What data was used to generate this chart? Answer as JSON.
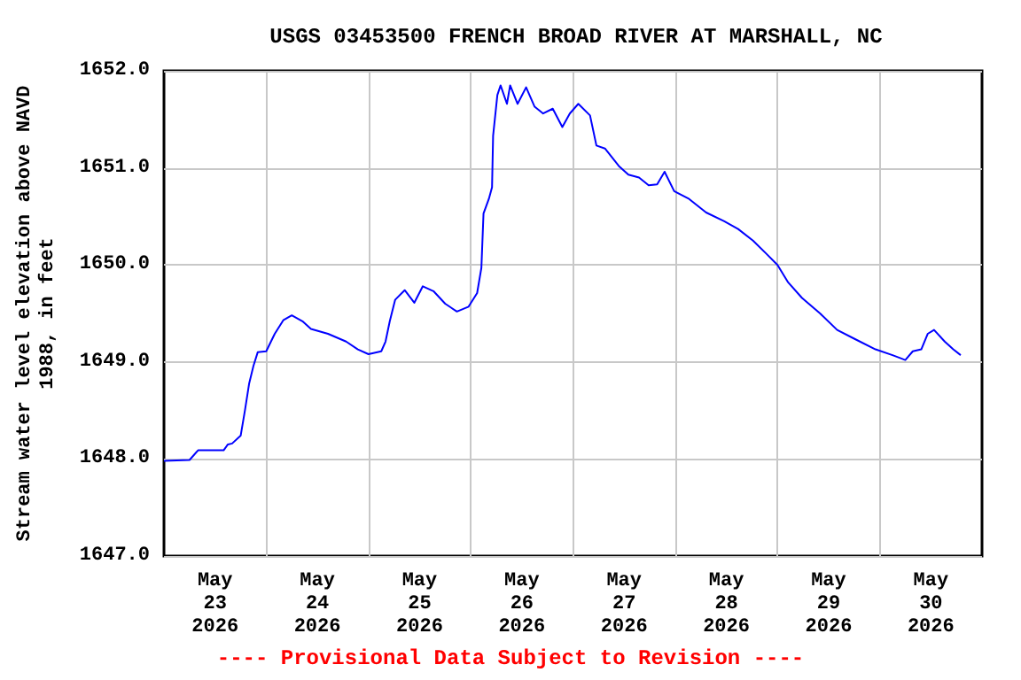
{
  "chart_data": {
    "type": "line",
    "title": "USGS 03453500 FRENCH BROAD RIVER AT MARSHALL, NC",
    "ylabel": "Stream water level elevation above NAVD\n1988, in feet",
    "annotations": [
      "---- Provisional Data Subject to Revision ----"
    ],
    "x": [
      "2026-05-22T12:00",
      "2026-05-22T18:00",
      "2026-05-22T20:00",
      "2026-05-23T02:00",
      "2026-05-23T03:00",
      "2026-05-23T04:00",
      "2026-05-23T06:00",
      "2026-05-23T07:00",
      "2026-05-23T08:00",
      "2026-05-23T09:00",
      "2026-05-23T10:00",
      "2026-05-23T12:00",
      "2026-05-23T14:00",
      "2026-05-23T16:00",
      "2026-05-23T18:00",
      "2026-05-23T20:30",
      "2026-05-23T22:30",
      "2026-05-24T02:30",
      "2026-05-24T06:45",
      "2026-05-24T09:30",
      "2026-05-24T12:00",
      "2026-05-24T15:00",
      "2026-05-24T16:00",
      "2026-05-24T17:00",
      "2026-05-24T18:15",
      "2026-05-24T20:30",
      "2026-05-24T22:45",
      "2026-05-25T00:45",
      "2026-05-25T03:15",
      "2026-05-25T06:00",
      "2026-05-25T08:45",
      "2026-05-25T11:30",
      "2026-05-25T13:30",
      "2026-05-25T14:30",
      "2026-05-25T15:00",
      "2026-05-25T16:15",
      "2026-05-25T17:00",
      "2026-05-25T17:15",
      "2026-05-25T18:15",
      "2026-05-25T19:00",
      "2026-05-25T20:30",
      "2026-05-25T21:15",
      "2026-05-25T23:00",
      "2026-05-26T01:00",
      "2026-05-26T03:00",
      "2026-05-26T05:00",
      "2026-05-26T07:15",
      "2026-05-26T09:30",
      "2026-05-26T11:15",
      "2026-05-26T13:15",
      "2026-05-26T16:00",
      "2026-05-26T17:30",
      "2026-05-26T19:30",
      "2026-05-26T22:45",
      "2026-05-27T01:00",
      "2026-05-27T03:30",
      "2026-05-27T05:45",
      "2026-05-27T07:45",
      "2026-05-27T09:30",
      "2026-05-27T11:45",
      "2026-05-27T15:15",
      "2026-05-27T19:15",
      "2026-05-27T23:30",
      "2026-05-28T02:45",
      "2026-05-28T06:15",
      "2026-05-28T09:30",
      "2026-05-28T12:00",
      "2026-05-28T14:30",
      "2026-05-28T17:45",
      "2026-05-28T22:00",
      "2026-05-29T02:00",
      "2026-05-29T06:00",
      "2026-05-29T11:00",
      "2026-05-29T15:00",
      "2026-05-29T18:00",
      "2026-05-29T19:45",
      "2026-05-29T21:45",
      "2026-05-29T23:15",
      "2026-05-30T00:45",
      "2026-05-30T03:15",
      "2026-05-30T05:15",
      "2026-05-30T07:00"
    ],
    "series": [
      {
        "color": "#0000ff",
        "values": [
          1647.98,
          1647.99,
          1648.09,
          1648.09,
          1648.15,
          1648.16,
          1648.24,
          1648.5,
          1648.78,
          1648.96,
          1649.1,
          1649.11,
          1649.29,
          1649.43,
          1649.48,
          1649.42,
          1649.34,
          1649.29,
          1649.21,
          1649.13,
          1649.08,
          1649.11,
          1649.21,
          1649.42,
          1649.64,
          1649.74,
          1649.61,
          1649.78,
          1649.73,
          1649.6,
          1649.52,
          1649.57,
          1649.71,
          1649.97,
          1650.53,
          1650.68,
          1650.8,
          1651.33,
          1651.75,
          1651.85,
          1651.66,
          1651.85,
          1651.66,
          1651.83,
          1651.63,
          1651.56,
          1651.61,
          1651.42,
          1651.56,
          1651.66,
          1651.54,
          1651.23,
          1651.2,
          1651.02,
          1650.93,
          1650.9,
          1650.82,
          1650.83,
          1650.96,
          1650.76,
          1650.68,
          1650.54,
          1650.45,
          1650.37,
          1650.25,
          1650.11,
          1650.0,
          1649.82,
          1649.66,
          1649.5,
          1649.33,
          1649.24,
          1649.13,
          1649.07,
          1649.02,
          1649.11,
          1649.13,
          1649.29,
          1649.33,
          1649.21,
          1649.13,
          1649.07
        ]
      }
    ],
    "xlim": [
      "2026-05-22T12:00",
      "2026-05-30T12:00"
    ],
    "xticks": [
      {
        "value": "2026-05-23T00:00",
        "label": "May\n23\n2026"
      },
      {
        "value": "2026-05-24T00:00",
        "label": "May\n24\n2026"
      },
      {
        "value": "2026-05-25T00:00",
        "label": "May\n25\n2026"
      },
      {
        "value": "2026-05-26T00:00",
        "label": "May\n26\n2026"
      },
      {
        "value": "2026-05-27T00:00",
        "label": "May\n27\n2026"
      },
      {
        "value": "2026-05-28T00:00",
        "label": "May\n28\n2026"
      },
      {
        "value": "2026-05-29T00:00",
        "label": "May\n29\n2026"
      },
      {
        "value": "2026-05-30T00:00",
        "label": "May\n30\n2026"
      },
      {
        "value": "2026-05-23T12:00",
        "label": null
      },
      {
        "value": "2026-05-24T12:00",
        "label": null
      },
      {
        "value": "2026-05-25T12:00",
        "label": null
      },
      {
        "value": "2026-05-26T12:00",
        "label": null
      },
      {
        "value": "2026-05-27T12:00",
        "label": null
      },
      {
        "value": "2026-05-28T12:00",
        "label": null
      },
      {
        "value": "2026-05-29T12:00",
        "label": null
      }
    ],
    "ylim": [
      1647,
      1652
    ],
    "yticks": [
      {
        "value": 1647,
        "label": "1647.0"
      },
      {
        "value": 1648,
        "label": "1648.0"
      },
      {
        "value": 1649,
        "label": "1649.0"
      },
      {
        "value": 1650,
        "label": "1650.0"
      },
      {
        "value": 1651,
        "label": "1651.0"
      },
      {
        "value": 1652,
        "label": "1652.0"
      }
    ],
    "grid": true,
    "line_style": "solid",
    "marker": "none"
  }
}
